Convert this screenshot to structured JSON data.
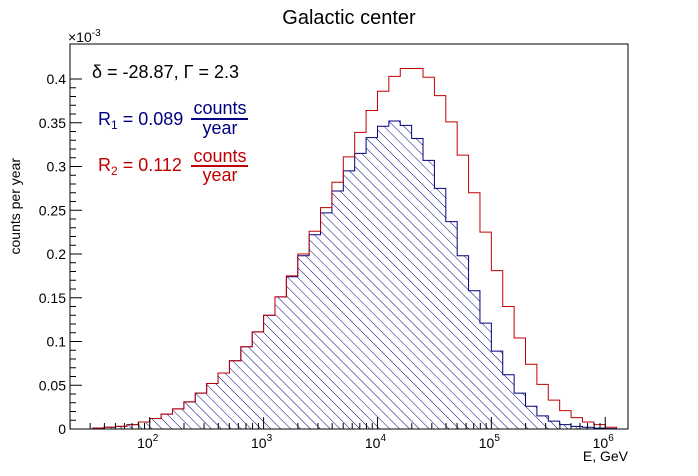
{
  "chart_data": {
    "type": "bar",
    "title": "Galactic center",
    "xlabel": "E, GeV",
    "ylabel": "counts per year",
    "y_multiplier": "×10",
    "y_multiplier_exp": "-3",
    "x_scale": "log",
    "xlim_log10": [
      1.3,
      6.2
    ],
    "ylim": [
      0,
      0.44
    ],
    "x_tick_labels": [
      {
        "base": "10",
        "exp": "2",
        "log10": 2
      },
      {
        "base": "10",
        "exp": "3",
        "log10": 3
      },
      {
        "base": "10",
        "exp": "4",
        "log10": 4
      },
      {
        "base": "10",
        "exp": "5",
        "log10": 5
      },
      {
        "base": "10",
        "exp": "6",
        "log10": 6
      }
    ],
    "y_tick_labels": [
      "0",
      "0.05",
      "0.1",
      "0.15",
      "0.2",
      "0.25",
      "0.3",
      "0.35",
      "0.4"
    ],
    "y_ticks": [
      0,
      0.05,
      0.1,
      0.15,
      0.2,
      0.25,
      0.3,
      0.35,
      0.4
    ],
    "bin_edges_log10": [
      1.5,
      1.6,
      1.7,
      1.8,
      1.9,
      2.0,
      2.1,
      2.2,
      2.3,
      2.4,
      2.5,
      2.6,
      2.7,
      2.8,
      2.9,
      3.0,
      3.1,
      3.2,
      3.3,
      3.4,
      3.5,
      3.6,
      3.7,
      3.8,
      3.9,
      4.0,
      4.1,
      4.2,
      4.3,
      4.4,
      4.5,
      4.6,
      4.7,
      4.8,
      4.9,
      5.0,
      5.1,
      5.2,
      5.3,
      5.4,
      5.5,
      5.6,
      5.7,
      5.8,
      5.9,
      6.0,
      6.1
    ],
    "series": [
      {
        "name": "R1",
        "color": "#000080",
        "fill": "hatched",
        "values": [
          0.001,
          0.002,
          0.003,
          0.005,
          0.008,
          0.012,
          0.017,
          0.023,
          0.031,
          0.041,
          0.052,
          0.064,
          0.078,
          0.094,
          0.111,
          0.13,
          0.151,
          0.174,
          0.198,
          0.222,
          0.247,
          0.272,
          0.295,
          0.315,
          0.333,
          0.346,
          0.352,
          0.347,
          0.332,
          0.307,
          0.275,
          0.237,
          0.198,
          0.158,
          0.121,
          0.089,
          0.062,
          0.041,
          0.026,
          0.015,
          0.009,
          0.005,
          0.003,
          0.002,
          0.001,
          0.0005
        ]
      },
      {
        "name": "R2",
        "color": "#c00000",
        "fill": "none",
        "values": [
          0.001,
          0.002,
          0.003,
          0.005,
          0.008,
          0.012,
          0.017,
          0.023,
          0.031,
          0.041,
          0.052,
          0.064,
          0.078,
          0.094,
          0.111,
          0.13,
          0.151,
          0.175,
          0.2,
          0.226,
          0.253,
          0.282,
          0.311,
          0.339,
          0.364,
          0.386,
          0.403,
          0.412,
          0.412,
          0.402,
          0.381,
          0.351,
          0.313,
          0.27,
          0.225,
          0.181,
          0.14,
          0.104,
          0.074,
          0.051,
          0.033,
          0.021,
          0.013,
          0.008,
          0.005,
          0.002
        ]
      }
    ],
    "annotations": {
      "params": "δ = -28.87,  Γ = 2.3",
      "r1_label": "R",
      "r1_sub": "1",
      "r1_value": " = 0.089",
      "r1_unit_num": "counts",
      "r1_unit_den": "year",
      "r1_color": "#000080",
      "r2_label": "R",
      "r2_sub": "2",
      "r2_value": " = 0.112",
      "r2_unit_num": "counts",
      "r2_unit_den": "year",
      "r2_color": "#c00000"
    }
  }
}
